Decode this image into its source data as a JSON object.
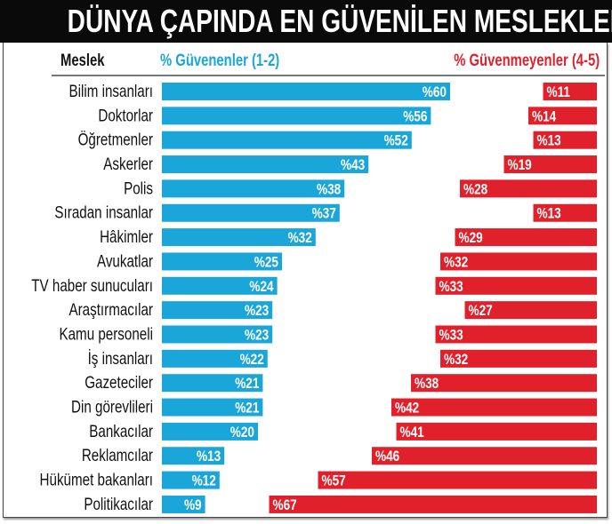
{
  "title": "DÜNYA ÇAPINDA EN GÜVENİLEN MESLEKLER",
  "chart_data": {
    "type": "bar",
    "title": "DÜNYA ÇAPINDA EN GÜVENİLEN MESLEKLER",
    "category_header": "Meslek",
    "categories": [
      "Bilim insanları",
      "Doktorlar",
      "Öğretmenler",
      "Askerler",
      "Polis",
      "Sıradan insanlar",
      "Hâkimler",
      "Avukatlar",
      "TV haber sunucuları",
      "Araştırmacılar",
      "Kamu personeli",
      "İş insanları",
      "Gazeteciler",
      "Din görevlileri",
      "Bankacılar",
      "Reklamcılar",
      "Hükümet bakanları",
      "Politikacılar"
    ],
    "series": [
      {
        "name": "% Güvenenler (1-2)",
        "color": "#1aa6d8",
        "values": [
          60,
          56,
          52,
          43,
          38,
          37,
          32,
          25,
          24,
          23,
          23,
          22,
          21,
          21,
          20,
          13,
          12,
          9
        ]
      },
      {
        "name": "% Güvenmeyenler (4-5)",
        "color": "#e0202a",
        "values": [
          11,
          14,
          13,
          19,
          28,
          13,
          29,
          32,
          33,
          27,
          33,
          32,
          38,
          42,
          41,
          46,
          57,
          67
        ]
      }
    ],
    "value_prefix": "%",
    "legend": "top",
    "grid": false
  }
}
